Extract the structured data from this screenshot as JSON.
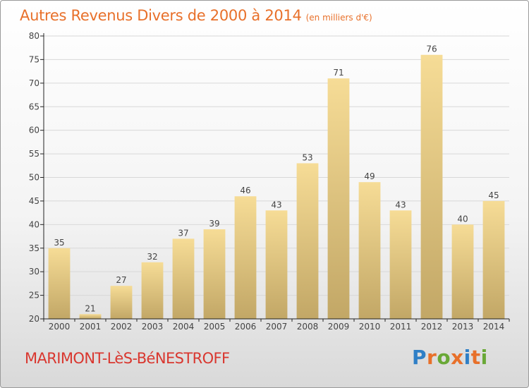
{
  "title": "Autres Revenus Divers de 2000 à 2014",
  "title_unit": "(en milliers d'€)",
  "town": "MARIMONT-LèS-BéNESTROFF",
  "logo": {
    "text": "Proxiti",
    "letters": [
      {
        "char": "P",
        "color": "#2f7fc6"
      },
      {
        "char": "r",
        "color": "#e8702a"
      },
      {
        "char": "o",
        "color": "#69a836"
      },
      {
        "char": "x",
        "color": "#e8702a"
      },
      {
        "char": "i",
        "color": "#2f7fc6"
      },
      {
        "char": "t",
        "color": "#e8702a"
      },
      {
        "char": "i",
        "color": "#69a836"
      }
    ]
  },
  "colors": {
    "title": "#e8702a",
    "town": "#d9372f",
    "bar_light": "#f6dc96",
    "bar_dark": "#c2a766",
    "grid": "#d8d8d8",
    "axis": "#222222",
    "text": "#444444"
  },
  "chart_data": {
    "type": "bar",
    "categories": [
      "2000",
      "2001",
      "2002",
      "2003",
      "2004",
      "2005",
      "2006",
      "2007",
      "2008",
      "2009",
      "2010",
      "2011",
      "2012",
      "2013",
      "2014"
    ],
    "values": [
      35,
      21,
      27,
      32,
      37,
      39,
      46,
      43,
      53,
      71,
      49,
      43,
      76,
      40,
      45
    ],
    "ylim": [
      20,
      80
    ],
    "yticks": [
      20,
      25,
      30,
      35,
      40,
      45,
      50,
      55,
      60,
      65,
      70,
      75,
      80
    ],
    "grid": true,
    "data_labels": true
  }
}
